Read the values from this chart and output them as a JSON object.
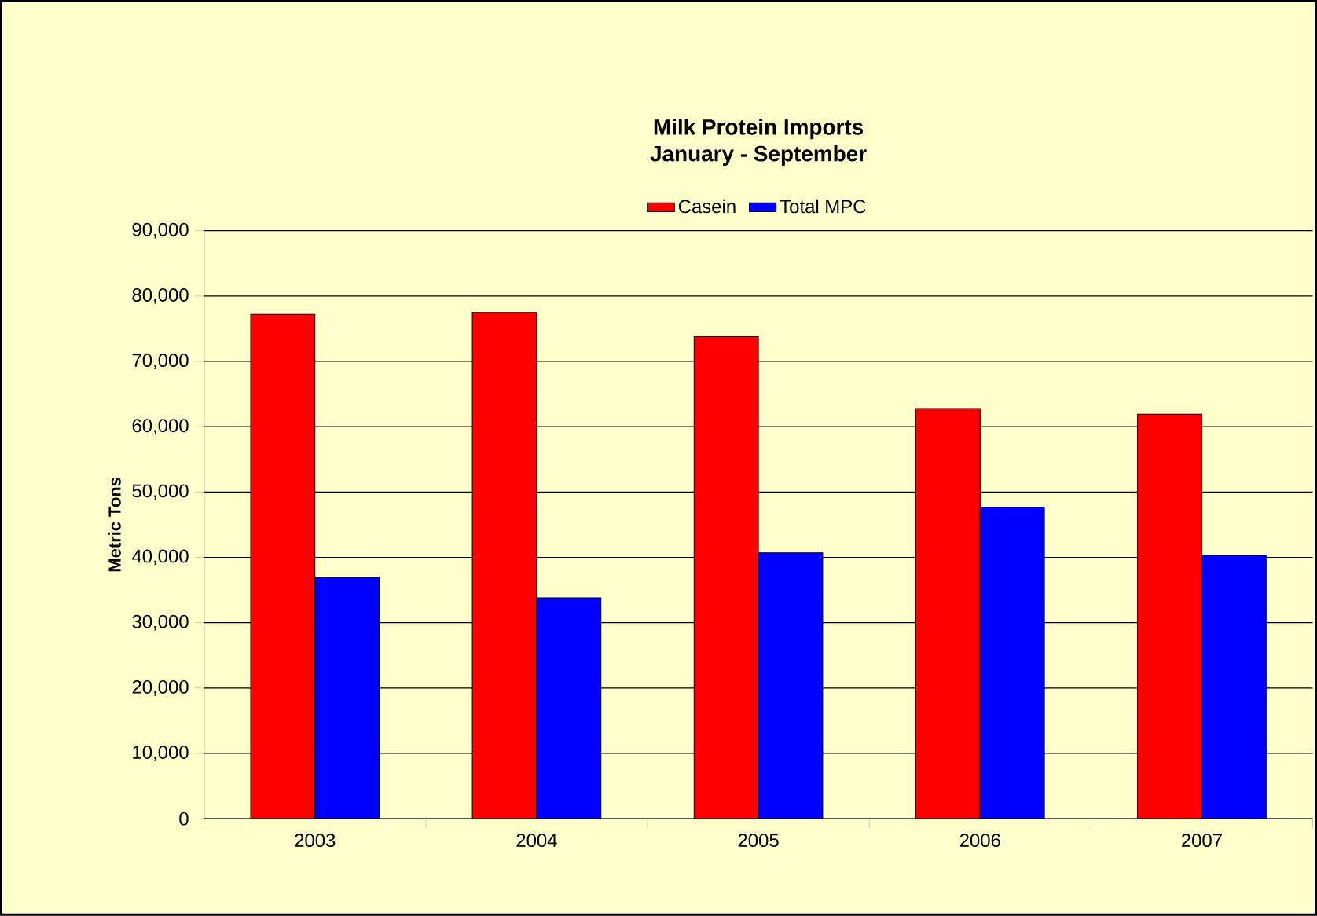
{
  "chart_data": {
    "type": "bar",
    "title": "Milk Protein Imports",
    "subtitle": "January - September",
    "ylabel": "Metric Tons",
    "categories": [
      "2003",
      "2004",
      "2005",
      "2006",
      "2007"
    ],
    "series": [
      {
        "name": "Casein",
        "color": "#ff0000",
        "values": [
          77200,
          77500,
          73800,
          62800,
          61900
        ]
      },
      {
        "name": "Total MPC",
        "color": "#0000ff",
        "values": [
          36900,
          33800,
          40700,
          47700,
          40300
        ]
      }
    ],
    "ylim": [
      0,
      90000
    ],
    "yticks": [
      {
        "value": 0,
        "label": "0"
      },
      {
        "value": 10000,
        "label": "10,000"
      },
      {
        "value": 20000,
        "label": "20,000"
      },
      {
        "value": 30000,
        "label": "30,000"
      },
      {
        "value": 40000,
        "label": "40,000"
      },
      {
        "value": 50000,
        "label": "50,000"
      },
      {
        "value": 60000,
        "label": "60,000"
      },
      {
        "value": 70000,
        "label": "70,000"
      },
      {
        "value": 80000,
        "label": "80,000"
      },
      {
        "value": 90000,
        "label": "90,000"
      }
    ],
    "grid": "y",
    "legend": "top"
  }
}
